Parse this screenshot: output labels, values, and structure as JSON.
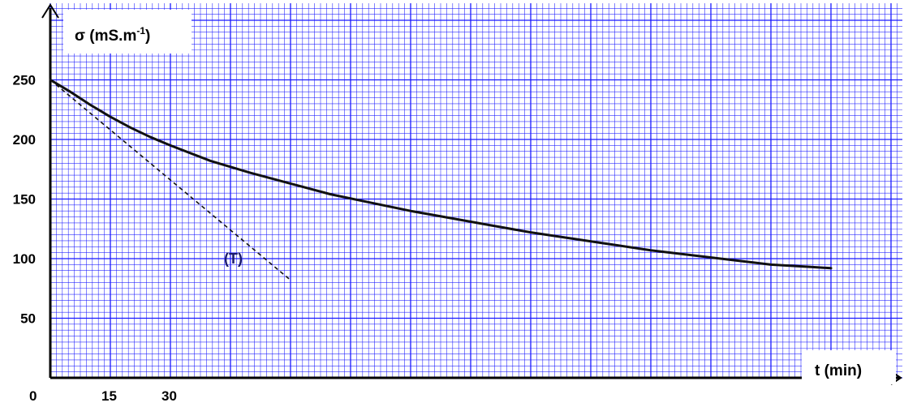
{
  "chart_data": {
    "type": "line",
    "ylabel": "σ (mS.m",
    "ylabel_exponent": "-1",
    "ylabel_close": ")",
    "xlabel": "t (min)",
    "x_ticks": [
      {
        "value": 0,
        "label": "0"
      },
      {
        "value": 15,
        "label": "15"
      },
      {
        "value": 30,
        "label": "30"
      }
    ],
    "y_ticks": [
      {
        "value": 50,
        "label": "50"
      },
      {
        "value": 100,
        "label": "100"
      },
      {
        "value": 150,
        "label": "150"
      },
      {
        "value": 200,
        "label": "200"
      },
      {
        "value": 250,
        "label": "250"
      }
    ],
    "xlim": [
      0,
      215
    ],
    "ylim": [
      0,
      310
    ],
    "grid": true,
    "grid_color": "#1a1aff",
    "series": [
      {
        "kind": "curve",
        "x": [
          0,
          5,
          10,
          15,
          20,
          25,
          30,
          40,
          50,
          60,
          70,
          80,
          90,
          100,
          110,
          120,
          130,
          140,
          150,
          160,
          170,
          180,
          190,
          195
        ],
        "y": [
          250,
          240,
          229,
          219,
          210,
          202,
          195,
          182,
          172,
          163,
          154,
          147,
          140,
          134,
          128,
          122,
          117,
          112,
          107,
          103,
          99,
          95,
          93,
          92
        ]
      },
      {
        "kind": "tangent",
        "label": "(T)",
        "x": [
          0,
          60
        ],
        "y": [
          250,
          82
        ]
      }
    ]
  }
}
